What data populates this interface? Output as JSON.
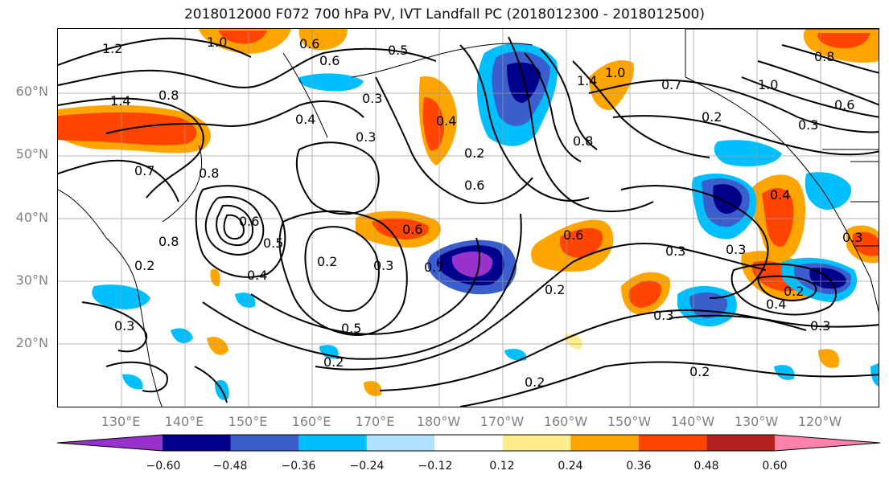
{
  "title": "2018012000 F072 700 hPa PV, IVT Landfall PC (2018012300 - 2018012500)",
  "lat_labels": [
    "60°N",
    "50°N",
    "40°N",
    "30°N",
    "20°N"
  ],
  "lon_labels": [
    "130°E",
    "140°E",
    "150°E",
    "160°E",
    "170°E",
    "180°W",
    "170°W",
    "160°W",
    "150°W",
    "140°W",
    "130°W",
    "120°W"
  ],
  "contour_labels": [
    "1.2",
    "1.0",
    "0.6",
    "0.5",
    "1.4",
    "0.8",
    "0.4",
    "0.3",
    "0.6",
    "0.3",
    "0.2",
    "0.6",
    "0.4",
    "0.8",
    "1.4",
    "1.0",
    "0.7",
    "0.8",
    "0.2",
    "1.0",
    "0.6",
    "0.3",
    "0.4",
    "0.8",
    "0.6",
    "0.5",
    "0.8",
    "0.7",
    "0.2",
    "0.4",
    "0.2",
    "0.3",
    "0.6",
    "0.7",
    "0.5",
    "0.6",
    "0.3",
    "0.2",
    "0.3",
    "0.3",
    "0.3",
    "0.2",
    "0.4",
    "0.3",
    "0.2",
    "0.2",
    "0.2",
    "0.3"
  ],
  "colorbar": {
    "colors": [
      "#9932cc",
      "#00008b",
      "#3a5fcd",
      "#00bfff",
      "#b0e2ff",
      "#ffffff",
      "#ffec8b",
      "#ffa500",
      "#ff4500",
      "#b22222",
      "#ff82ab"
    ],
    "ticks": [
      "−0.60",
      "−0.48",
      "−0.36",
      "−0.24",
      "−0.12",
      "0.12",
      "0.24",
      "0.36",
      "0.48",
      "0.60"
    ]
  }
}
